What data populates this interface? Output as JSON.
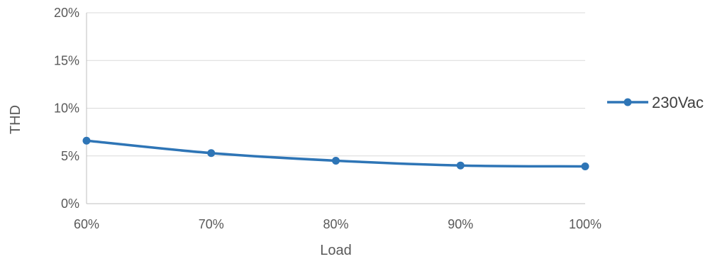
{
  "chart_data": {
    "type": "line",
    "xlabel": "Load",
    "ylabel": "THD",
    "x": [
      "60%",
      "70%",
      "80%",
      "90%",
      "100%"
    ],
    "x_values": [
      60,
      70,
      80,
      90,
      100
    ],
    "xlim": [
      60,
      100
    ],
    "ylim": [
      0,
      20
    ],
    "yticks": [
      0,
      5,
      10,
      15,
      20
    ],
    "ytick_labels": [
      "0%",
      "5%",
      "10%",
      "15%",
      "20%"
    ],
    "grid": true,
    "legend": "right",
    "series": [
      {
        "name": "230Vac",
        "color": "#2e75b6",
        "values": [
          6.6,
          5.3,
          4.5,
          4.0,
          3.9
        ]
      }
    ]
  }
}
